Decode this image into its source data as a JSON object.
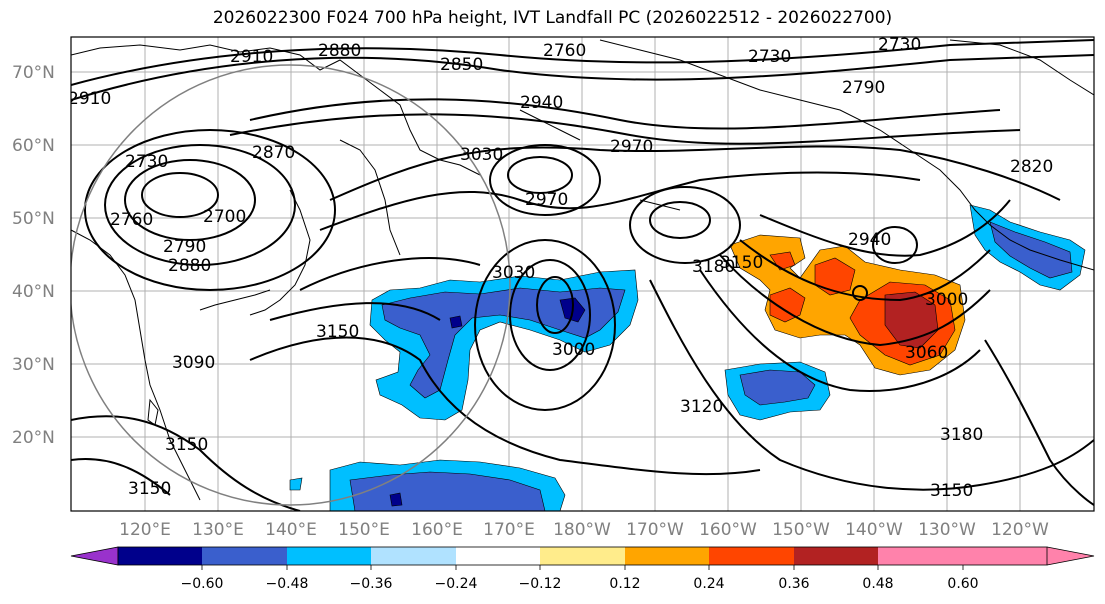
{
  "title": "2026022300 F024 700 hPa height, IVT Landfall PC (2026022512 - 2026022700)",
  "lat_labels": [
    "70°N",
    "60°N",
    "50°N",
    "40°N",
    "30°N",
    "20°N"
  ],
  "lon_labels": [
    "120°E",
    "130°E",
    "140°E",
    "150°E",
    "160°E",
    "170°E",
    "180°W",
    "170°W",
    "160°W",
    "150°W",
    "140°W",
    "130°W",
    "120°W"
  ],
  "colorbar": {
    "ticks": [
      "−0.60",
      "−0.48",
      "−0.36",
      "−0.24",
      "−0.12",
      "0.12",
      "0.24",
      "0.36",
      "0.48",
      "0.60"
    ],
    "colors": [
      "#9932cc",
      "#00008b",
      "#3a5fcd",
      "#00bfff",
      "#b0e2ff",
      "#ffffff",
      "#ffec8b",
      "#ffa500",
      "#ff4500",
      "#b22222",
      "#ff82ab"
    ]
  },
  "contour_labels": [
    "2910",
    "2880",
    "2760",
    "2730",
    "2730",
    "2910",
    "2850",
    "2940",
    "2790",
    "3030",
    "2970",
    "2730",
    "2870",
    "2820",
    "2760",
    "2700",
    "2970",
    "2790",
    "2880",
    "2940",
    "3180",
    "3150",
    "3030",
    "3000",
    "3000",
    "3150",
    "3060",
    "3090",
    "3120",
    "3180",
    "3150",
    "3150",
    "3150"
  ]
}
